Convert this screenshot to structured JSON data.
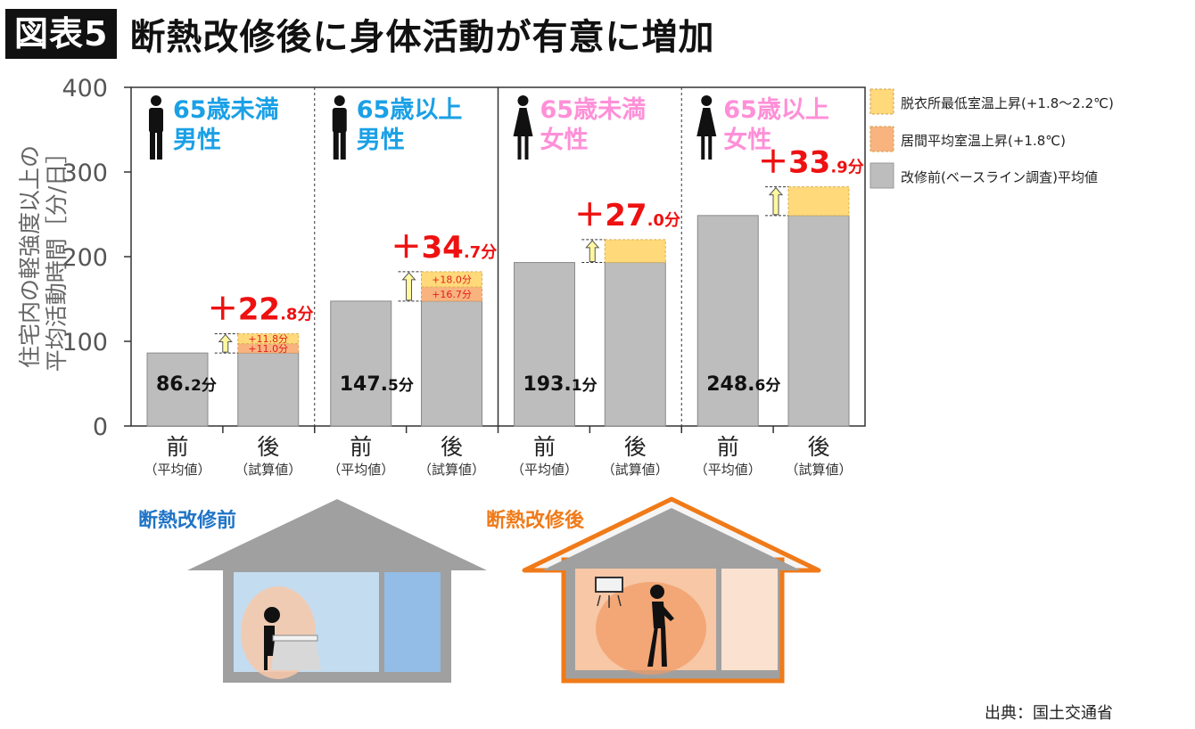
{
  "header": {
    "badge": "図表5",
    "title": "断熱改修後に身体活動が有意に増加"
  },
  "source": "出典：国土交通省",
  "chart_data": {
    "type": "bar",
    "stacked": true,
    "ylabel_line1": "住宅内の軽強度以上の",
    "ylabel_line2": "平均活動時間［分/日］",
    "ylim": [
      0,
      400
    ],
    "yticks": [
      0,
      100,
      200,
      300,
      400
    ],
    "legend_position": "right",
    "legend": [
      {
        "name": "脱衣所最低室温上昇(+1.8～2.2℃)",
        "color": "#ffd97a"
      },
      {
        "name": "居間平均室温上昇(+1.8℃)",
        "color": "#f9b37f"
      },
      {
        "name": "改修前(ベースライン調査)平均値",
        "color": "#bdbdbd"
      }
    ],
    "groups": [
      {
        "label_line1": "65歳未満",
        "label_line2": "男性",
        "gender": "male",
        "label_color": "#1aa0e6",
        "before": {
          "value": 86.2,
          "label_main": "86.",
          "label_dec": "2分",
          "xlabel": "前",
          "sublabel": "（平均値）"
        },
        "after": {
          "base": 86.2,
          "orange": 11.0,
          "yellow": 11.8,
          "xlabel": "後",
          "sublabel": "（試算値）",
          "increase_sign": "＋",
          "increase_main": "22",
          "increase_dec": ".8分",
          "orange_label": "+11.0分",
          "yellow_label": "+11.8分"
        }
      },
      {
        "label_line1": "65歳以上",
        "label_line2": "男性",
        "gender": "male",
        "label_color": "#1aa0e6",
        "before": {
          "value": 147.5,
          "label_main": "147.",
          "label_dec": "5分",
          "xlabel": "前",
          "sublabel": "（平均値）"
        },
        "after": {
          "base": 147.5,
          "orange": 16.7,
          "yellow": 18.0,
          "xlabel": "後",
          "sublabel": "（試算値）",
          "increase_sign": "＋",
          "increase_main": "34",
          "increase_dec": ".7分",
          "orange_label": "+16.7分",
          "yellow_label": "+18.0分"
        }
      },
      {
        "label_line1": "65歳未満",
        "label_line2": "女性",
        "gender": "female",
        "label_color": "#ff8fd8",
        "before": {
          "value": 193.1,
          "label_main": "193.",
          "label_dec": "1分",
          "xlabel": "前",
          "sublabel": "（平均値）"
        },
        "after": {
          "base": 193.1,
          "orange": 0,
          "yellow": 27.0,
          "xlabel": "後",
          "sublabel": "（試算値）",
          "increase_sign": "＋",
          "increase_main": "27",
          "increase_dec": ".0分",
          "orange_label": "",
          "yellow_label": ""
        }
      },
      {
        "label_line1": "65歳以上",
        "label_line2": "女性",
        "gender": "female",
        "label_color": "#ff8fd8",
        "before": {
          "value": 248.6,
          "label_main": "248.",
          "label_dec": "6分",
          "xlabel": "前",
          "sublabel": "（平均値）"
        },
        "after": {
          "base": 248.6,
          "orange": 0,
          "yellow": 33.9,
          "xlabel": "後",
          "sublabel": "（試算値）",
          "increase_sign": "＋",
          "increase_main": "33",
          "increase_dec": ".9分",
          "orange_label": "",
          "yellow_label": ""
        }
      }
    ]
  },
  "illustration": {
    "before_label": "断熱改修前",
    "before_color": "#1f74c6",
    "after_label": "断熱改修後",
    "after_color": "#f07a18"
  }
}
